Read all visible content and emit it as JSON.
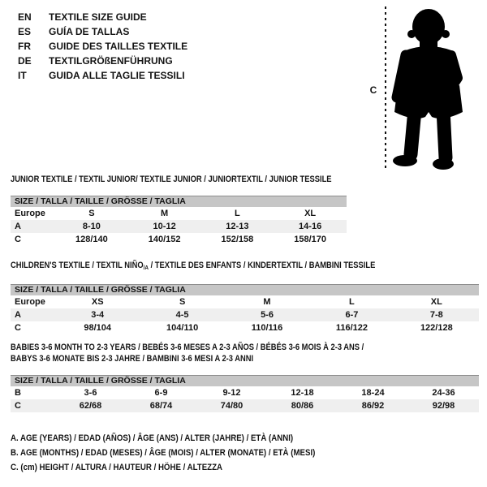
{
  "colors": {
    "text": "#141414",
    "size_bar_bg": "#c6c6c6",
    "size_bar_border": "#8e8e8e",
    "shaded_row_bg": "#efefef",
    "silhouette": "#000000"
  },
  "header": {
    "languages": [
      {
        "code": "EN",
        "label": "TEXTILE SIZE GUIDE"
      },
      {
        "code": "ES",
        "label": "GUÍA DE TALLAS"
      },
      {
        "code": "FR",
        "label": "GUIDE DES TAILLES TEXTILE"
      },
      {
        "code": "DE",
        "label": "TEXTILGRÖßENFÜHRUNG"
      },
      {
        "code": "IT",
        "label": "GUIDA ALLE TAGLIE TESSILI"
      }
    ]
  },
  "figure": {
    "measure_label": "C",
    "depicts": "standing-toddler-silhouette"
  },
  "sections": [
    {
      "id": "junior",
      "title_lines": [
        [
          {
            "text": "JUNIOR TEXTILE / TEXTIL JUNIOR/ TEXTILE JUNIOR / JUNIORTEXTIL / JUNIOR TESSILE"
          }
        ]
      ],
      "size_header": "SIZE / TALLA / TAILLE / GRÖSSE / TAGLIA",
      "rows": [
        {
          "label": "Europe",
          "cells": [
            "S",
            "M",
            "L",
            "XL"
          ]
        },
        {
          "label": "A",
          "cells": [
            "8-10",
            "10-12",
            "12-13",
            "14-16"
          ]
        },
        {
          "label": "C",
          "cells": [
            "128/140",
            "140/152",
            "152/158",
            "158/170"
          ]
        }
      ]
    },
    {
      "id": "children",
      "title_lines": [
        [
          {
            "text": "CHILDREN'S TEXTILE / TEXTIL NIÑO"
          },
          {
            "text": "/A",
            "sub": true
          },
          {
            "text": " / TEXTILE DES ENFANTS / KINDERTEXTIL / BAMBINI TESSILE"
          }
        ]
      ],
      "size_header": "SIZE / TALLA / TAILLE / GRÖSSE / TAGLIA",
      "rows": [
        {
          "label": "Europe",
          "cells": [
            "XS",
            "S",
            "M",
            "L",
            "XL"
          ]
        },
        {
          "label": "A",
          "cells": [
            "3-4",
            "4-5",
            "5-6",
            "6-7",
            "7-8"
          ]
        },
        {
          "label": "C",
          "cells": [
            "98/104",
            "104/110",
            "110/116",
            "116/122",
            "122/128"
          ]
        }
      ]
    },
    {
      "id": "babies",
      "title_lines": [
        [
          {
            "text": "BABIES 3-6 MONTH TO 2-3 YEARS / BEBÉS 3-6 MESES A 2-3 AÑOS / BÉBÉS 3-6 MOIS À 2-3 ANS /"
          }
        ],
        [
          {
            "text": "BABYS 3-6 MONATE BIS 2-3 JAHRE / BAMBINI 3-6 MESI A 2-3 ANNI"
          }
        ]
      ],
      "size_header": "SIZE / TALLA / TAILLE / GRÖSSE / TAGLIA",
      "rows": [
        {
          "label": "B",
          "cells": [
            "3-6",
            "6-9",
            "9-12",
            "12-18",
            "18-24",
            "24-36"
          ]
        },
        {
          "label": "C",
          "cells": [
            "62/68",
            "68/74",
            "74/80",
            "80/86",
            "86/92",
            "92/98"
          ]
        }
      ]
    }
  ],
  "footnotes": [
    "A. AGE (YEARS) / EDAD (AÑOS) / ÂGE (ANS) / ALTER (JAHRE) / ETÀ (ANNI)",
    "B. AGE (MONTHS) / EDAD (MESES) / ÂGE (MOIS) / ALTER (MONATE) / ETÀ (MESI)",
    "C. (cm) HEIGHT / ALTURA / HAUTEUR / HÖHE / ALTEZZA"
  ]
}
